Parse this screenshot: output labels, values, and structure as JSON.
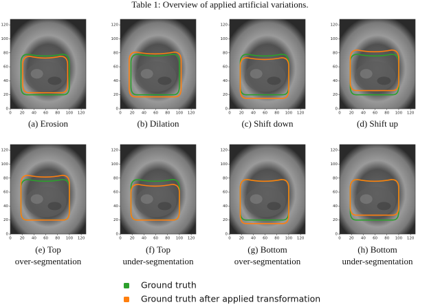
{
  "title": "Table 1: Overview of applied artificial variations.",
  "axis": {
    "ticks": [
      0,
      20,
      40,
      60,
      80,
      100,
      120
    ]
  },
  "panels": [
    {
      "caption": [
        "(a) Erosion"
      ]
    },
    {
      "caption": [
        "(b) Dilation"
      ]
    },
    {
      "caption": [
        "(c) Shift down"
      ]
    },
    {
      "caption": [
        "(d) Shift up"
      ]
    },
    {
      "caption": [
        "(e) Top",
        "over-segmentation"
      ]
    },
    {
      "caption": [
        "(f) Top",
        "under-segmentation"
      ]
    },
    {
      "caption": [
        "(g) Bottom",
        "over-segmentation"
      ]
    },
    {
      "caption": [
        "(h) Bottom",
        "under-segmentation"
      ]
    }
  ],
  "legend": [
    {
      "label": "Ground truth",
      "color": "#2ca02c"
    },
    {
      "label": "Ground truth after applied transformation",
      "color": "#ff7f0e"
    }
  ]
}
